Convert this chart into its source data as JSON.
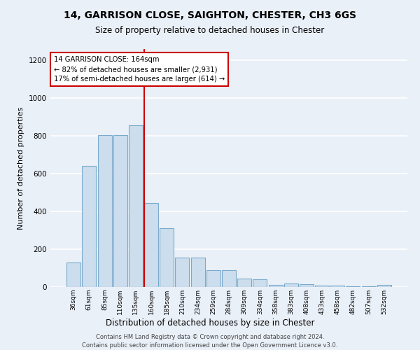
{
  "title": "14, GARRISON CLOSE, SAIGHTON, CHESTER, CH3 6GS",
  "subtitle": "Size of property relative to detached houses in Chester",
  "xlabel": "Distribution of detached houses by size in Chester",
  "ylabel": "Number of detached properties",
  "categories": [
    "36sqm",
    "61sqm",
    "85sqm",
    "110sqm",
    "135sqm",
    "160sqm",
    "185sqm",
    "210sqm",
    "234sqm",
    "259sqm",
    "284sqm",
    "309sqm",
    "334sqm",
    "358sqm",
    "383sqm",
    "408sqm",
    "433sqm",
    "458sqm",
    "482sqm",
    "507sqm",
    "532sqm"
  ],
  "values": [
    130,
    640,
    805,
    805,
    855,
    445,
    310,
    155,
    155,
    90,
    90,
    45,
    40,
    12,
    17,
    14,
    8,
    7,
    5,
    5,
    10
  ],
  "bar_color": "#ccdded",
  "bar_edge_color": "#7aaacc",
  "vline_index": 5,
  "annotation_text": "14 GARRISON CLOSE: 164sqm\n← 82% of detached houses are smaller (2,931)\n17% of semi-detached houses are larger (614) →",
  "annotation_box_color": "#ffffff",
  "annotation_box_edge": "#cc0000",
  "vline_color": "#cc0000",
  "ylim": [
    0,
    1260
  ],
  "yticks": [
    0,
    200,
    400,
    600,
    800,
    1000,
    1200
  ],
  "background_color": "#eaf0f8",
  "grid_color": "#ffffff",
  "footer": "Contains HM Land Registry data © Crown copyright and database right 2024.\nContains public sector information licensed under the Open Government Licence v3.0."
}
